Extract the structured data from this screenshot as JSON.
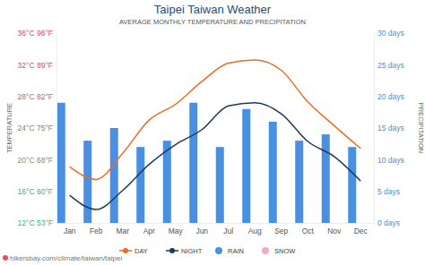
{
  "chart_data": {
    "type": "line",
    "title": "Taipei Taiwan Weather",
    "subtitle": "AVERAGE MONTHLY TEMPERATURE AND PRECIPITATION",
    "y_label": "TEMPERATURE",
    "y2_label": "PRECIPITATION",
    "source": "hikersbay.com/climate/taiwan/taipei",
    "categories": [
      "Jan",
      "Feb",
      "Mar",
      "Apr",
      "May",
      "Jun",
      "Jul",
      "Aug",
      "Sep",
      "Oct",
      "Nov",
      "Dec"
    ],
    "series": [
      {
        "name": "DAY",
        "type": "line",
        "color": "#f26b21",
        "values": [
          19.1,
          17.5,
          20.8,
          25,
          27,
          29.9,
          32.2,
          32.6,
          31.3,
          27.3,
          24.3,
          21.4
        ]
      },
      {
        "name": "NIGHT",
        "type": "line",
        "color": "#1d3a5c",
        "values": [
          15.5,
          13.7,
          16.1,
          19.4,
          21.9,
          23.8,
          26.8,
          27.2,
          25.8,
          22.3,
          20.4,
          17.3
        ]
      },
      {
        "name": "RAIN",
        "type": "bar",
        "axis": "y2",
        "color": "#4a90e2",
        "values": [
          19,
          13,
          15,
          12,
          13,
          19,
          12,
          18,
          16,
          13,
          14,
          12
        ]
      },
      {
        "name": "SNOW",
        "type": "bar",
        "axis": "y2",
        "color": "#f5a9c4",
        "values": [
          0,
          0,
          0,
          0,
          0,
          0,
          0,
          0,
          0,
          0,
          0,
          0
        ]
      }
    ],
    "ylim": [
      12,
      36
    ],
    "yticks": [
      {
        "value": 12,
        "label": "12°C 53°F"
      },
      {
        "value": 16,
        "label": "16°C 60°F"
      },
      {
        "value": 20,
        "label": "20°C 68°F"
      },
      {
        "value": 24,
        "label": "24°C 75°F"
      },
      {
        "value": 28,
        "label": "28°C 82°F"
      },
      {
        "value": 32,
        "label": "32°C 89°F"
      },
      {
        "value": 36,
        "label": "36°C 96°F"
      }
    ],
    "y2lim": [
      0,
      30
    ],
    "y2ticks": [
      {
        "value": 0,
        "label": "0 days"
      },
      {
        "value": 5,
        "label": "5 days"
      },
      {
        "value": 10,
        "label": "10 days"
      },
      {
        "value": 15,
        "label": "15 days"
      },
      {
        "value": 20,
        "label": "20 days"
      },
      {
        "value": 25,
        "label": "25 days"
      },
      {
        "value": 30,
        "label": "30 days"
      }
    ],
    "grid": false,
    "legend": "bottom"
  }
}
